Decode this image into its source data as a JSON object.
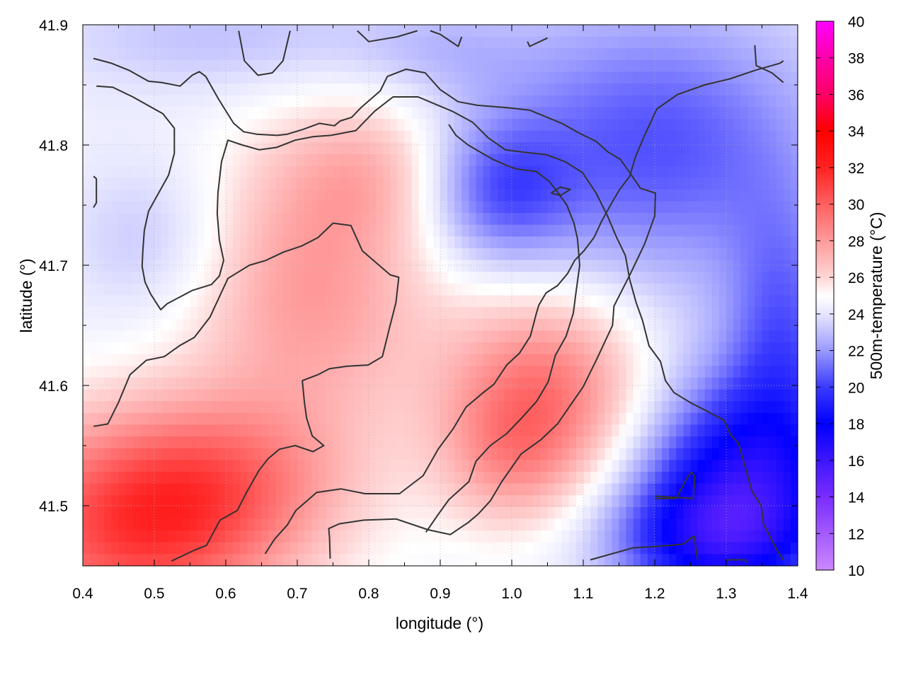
{
  "chart_data": {
    "type": "heatmap",
    "xlabel": "longitude (°)",
    "ylabel": "latitude (°)",
    "colorbar_label": "500m-temperature (°C)",
    "xlim": [
      0.4,
      1.4
    ],
    "ylim": [
      41.45,
      41.9
    ],
    "x_ticks": [
      "0.4",
      "0.5",
      "0.6",
      "0.7",
      "0.8",
      "0.9",
      "1.0",
      "1.1",
      "1.2",
      "1.3",
      "1.4"
    ],
    "y_ticks": [
      "41.5",
      "41.6",
      "41.7",
      "41.8",
      "41.9"
    ],
    "colorbar_range": [
      10,
      40
    ],
    "colorbar_ticks": [
      "10",
      "12",
      "14",
      "16",
      "18",
      "20",
      "22",
      "24",
      "26",
      "28",
      "30",
      "32",
      "34",
      "36",
      "38",
      "40"
    ],
    "colormap": [
      {
        "value": 10,
        "color": "#cc88ff"
      },
      {
        "value": 14,
        "color": "#7a2cff"
      },
      {
        "value": 18,
        "color": "#0000ff"
      },
      {
        "value": 20,
        "color": "#3a3aff"
      },
      {
        "value": 22,
        "color": "#9a9aff"
      },
      {
        "value": 24,
        "color": "#e6e6ff"
      },
      {
        "value": 25,
        "color": "#ffffff"
      },
      {
        "value": 26,
        "color": "#ffd6d6"
      },
      {
        "value": 28,
        "color": "#ff9a9a"
      },
      {
        "value": 30,
        "color": "#ff6060"
      },
      {
        "value": 32,
        "color": "#ff2222"
      },
      {
        "value": 34,
        "color": "#ff0000"
      },
      {
        "value": 36,
        "color": "#ff0066"
      },
      {
        "value": 38,
        "color": "#ff00aa"
      },
      {
        "value": 40,
        "color": "#ff00ff"
      }
    ],
    "grid": true,
    "contour_color": "#333333",
    "field_blobs": [
      {
        "lon": 0.47,
        "lat": 41.48,
        "r_lon": 0.2,
        "r_lat": 0.09,
        "delta": 6.0
      },
      {
        "lon": 0.6,
        "lat": 41.52,
        "r_lon": 0.18,
        "r_lat": 0.07,
        "delta": 3.0
      },
      {
        "lon": 0.72,
        "lat": 41.68,
        "r_lon": 0.17,
        "r_lat": 0.12,
        "delta": 3.5
      },
      {
        "lon": 0.8,
        "lat": 41.78,
        "r_lon": 0.12,
        "r_lat": 0.06,
        "delta": 2.0
      },
      {
        "lon": 1.05,
        "lat": 41.6,
        "r_lon": 0.14,
        "r_lat": 0.08,
        "delta": 4.5
      },
      {
        "lon": 1.0,
        "lat": 41.54,
        "r_lon": 0.1,
        "r_lat": 0.06,
        "delta": 2.5
      },
      {
        "lon": 0.5,
        "lat": 41.72,
        "r_lon": 0.12,
        "r_lat": 0.07,
        "delta": -1.5
      },
      {
        "lon": 1.2,
        "lat": 41.8,
        "r_lon": 0.25,
        "r_lat": 0.12,
        "delta": -4.0
      },
      {
        "lon": 0.98,
        "lat": 41.76,
        "r_lon": 0.1,
        "r_lat": 0.06,
        "delta": -3.0
      },
      {
        "lon": 1.33,
        "lat": 41.52,
        "r_lon": 0.15,
        "r_lat": 0.09,
        "delta": -7.0
      },
      {
        "lon": 1.27,
        "lat": 41.47,
        "r_lon": 0.14,
        "r_lat": 0.05,
        "delta": -4.0
      },
      {
        "lon": 1.38,
        "lat": 41.65,
        "r_lon": 0.08,
        "r_lat": 0.1,
        "delta": -3.0
      },
      {
        "lon": 0.6,
        "lat": 41.89,
        "r_lon": 0.25,
        "r_lat": 0.05,
        "delta": -1.5
      },
      {
        "lon": 0.9,
        "lat": 41.88,
        "r_lon": 0.12,
        "r_lat": 0.04,
        "delta": -1.0
      }
    ],
    "field_base": 24.5,
    "contours": [
      [
        [
          0.415,
          41.872
        ],
        [
          0.44,
          41.868
        ],
        [
          0.465,
          41.862
        ],
        [
          0.492,
          41.853
        ],
        [
          0.51,
          41.852
        ],
        [
          0.536,
          41.849
        ],
        [
          0.553,
          41.858
        ],
        [
          0.563,
          41.861
        ],
        [
          0.572,
          41.857
        ],
        [
          0.59,
          41.838
        ],
        [
          0.611,
          41.818
        ],
        [
          0.625,
          41.811
        ],
        [
          0.643,
          41.809
        ],
        [
          0.672,
          41.808
        ],
        [
          0.686,
          41.809
        ],
        [
          0.708,
          41.813
        ],
        [
          0.731,
          41.818
        ],
        [
          0.752,
          41.816
        ],
        [
          0.76,
          41.82
        ],
        [
          0.776,
          41.823
        ],
        [
          0.789,
          41.831
        ],
        [
          0.816,
          41.845
        ],
        [
          0.826,
          41.857
        ],
        [
          0.852,
          41.863
        ],
        [
          0.879,
          41.86
        ],
        [
          0.9,
          41.846
        ],
        [
          0.925,
          41.836
        ],
        [
          0.952,
          41.833
        ],
        [
          0.994,
          41.831
        ],
        [
          1.025,
          41.829
        ],
        [
          1.07,
          41.818
        ],
        [
          1.094,
          41.81
        ],
        [
          1.118,
          41.803
        ],
        [
          1.135,
          41.794
        ],
        [
          1.152,
          41.788
        ],
        [
          1.165,
          41.777
        ],
        [
          1.18,
          41.764
        ],
        [
          1.201,
          41.76
        ],
        [
          1.2,
          41.741
        ],
        [
          1.186,
          41.718
        ],
        [
          1.166,
          41.693
        ],
        [
          1.143,
          41.666
        ],
        [
          1.141,
          41.65
        ],
        [
          1.119,
          41.622
        ],
        [
          1.1,
          41.599
        ],
        [
          1.064,
          41.568
        ],
        [
          1.041,
          41.555
        ],
        [
          1.013,
          41.543
        ],
        [
          0.986,
          41.52
        ],
        [
          0.97,
          41.504
        ],
        [
          0.953,
          41.493
        ],
        [
          0.939,
          41.486
        ],
        [
          0.929,
          41.482
        ],
        [
          0.914,
          41.476
        ],
        [
          0.883,
          41.48
        ],
        [
          0.838,
          41.489
        ],
        [
          0.793,
          41.488
        ],
        [
          0.759,
          41.485
        ],
        [
          0.744,
          41.481
        ],
        [
          0.745,
          41.474
        ],
        [
          0.746,
          41.456
        ]
      ],
      [
        [
          0.419,
          41.849
        ],
        [
          0.442,
          41.848
        ],
        [
          0.47,
          41.84
        ],
        [
          0.488,
          41.834
        ],
        [
          0.512,
          41.826
        ],
        [
          0.528,
          41.814
        ],
        [
          0.528,
          41.793
        ],
        [
          0.52,
          41.775
        ],
        [
          0.505,
          41.759
        ],
        [
          0.492,
          41.745
        ],
        [
          0.486,
          41.729
        ],
        [
          0.484,
          41.712
        ],
        [
          0.483,
          41.699
        ],
        [
          0.487,
          41.686
        ],
        [
          0.495,
          41.676
        ],
        [
          0.509,
          41.663
        ],
        [
          0.518,
          41.668
        ],
        [
          0.537,
          41.674
        ],
        [
          0.553,
          41.679
        ],
        [
          0.58,
          41.684
        ],
        [
          0.591,
          41.691
        ],
        [
          0.597,
          41.704
        ],
        [
          0.591,
          41.721
        ],
        [
          0.588,
          41.743
        ],
        [
          0.589,
          41.76
        ],
        [
          0.594,
          41.786
        ],
        [
          0.603,
          41.804
        ],
        [
          0.623,
          41.8
        ],
        [
          0.647,
          41.796
        ],
        [
          0.671,
          41.798
        ],
        [
          0.697,
          41.804
        ],
        [
          0.723,
          41.807
        ],
        [
          0.747,
          41.808
        ],
        [
          0.782,
          41.812
        ],
        [
          0.808,
          41.828
        ],
        [
          0.834,
          41.84
        ],
        [
          0.869,
          41.84
        ],
        [
          0.897,
          41.833
        ],
        [
          0.917,
          41.828
        ],
        [
          0.945,
          41.819
        ],
        [
          0.967,
          41.806
        ],
        [
          0.991,
          41.796
        ],
        [
          1.017,
          41.794
        ],
        [
          1.048,
          41.792
        ],
        [
          1.075,
          41.786
        ],
        [
          1.099,
          41.777
        ],
        [
          1.118,
          41.76
        ],
        [
          1.134,
          41.741
        ],
        [
          1.146,
          41.724
        ],
        [
          1.159,
          41.708
        ],
        [
          1.165,
          41.688
        ],
        [
          1.174,
          41.669
        ],
        [
          1.183,
          41.654
        ],
        [
          1.192,
          41.633
        ],
        [
          1.208,
          41.62
        ],
        [
          1.215,
          41.604
        ],
        [
          1.227,
          41.594
        ],
        [
          1.252,
          41.585
        ],
        [
          1.272,
          41.579
        ],
        [
          1.297,
          41.571
        ],
        [
          1.306,
          41.559
        ],
        [
          1.317,
          41.552
        ],
        [
          1.322,
          41.542
        ],
        [
          1.336,
          41.512
        ],
        [
          1.349,
          41.5
        ],
        [
          1.352,
          41.485
        ],
        [
          1.372,
          41.462
        ],
        [
          1.38,
          41.455
        ]
      ],
      [
        [
          0.415,
          41.566
        ],
        [
          0.435,
          41.568
        ],
        [
          0.45,
          41.586
        ],
        [
          0.466,
          41.609
        ],
        [
          0.489,
          41.621
        ],
        [
          0.514,
          41.624
        ],
        [
          0.535,
          41.633
        ],
        [
          0.556,
          41.64
        ],
        [
          0.578,
          41.657
        ],
        [
          0.603,
          41.689
        ],
        [
          0.633,
          41.7
        ],
        [
          0.656,
          41.704
        ],
        [
          0.681,
          41.711
        ],
        [
          0.706,
          41.716
        ],
        [
          0.729,
          41.723
        ],
        [
          0.75,
          41.735
        ],
        [
          0.775,
          41.733
        ],
        [
          0.791,
          41.712
        ],
        [
          0.83,
          41.692
        ],
        [
          0.842,
          41.69
        ],
        [
          0.838,
          41.669
        ],
        [
          0.829,
          41.648
        ],
        [
          0.819,
          41.624
        ],
        [
          0.799,
          41.617
        ],
        [
          0.77,
          41.616
        ],
        [
          0.745,
          41.614
        ],
        [
          0.729,
          41.609
        ],
        [
          0.707,
          41.604
        ],
        [
          0.71,
          41.586
        ],
        [
          0.713,
          41.573
        ],
        [
          0.721,
          41.558
        ],
        [
          0.737,
          41.55
        ],
        [
          0.722,
          41.545
        ],
        [
          0.697,
          41.55
        ],
        [
          0.675,
          41.547
        ],
        [
          0.659,
          41.539
        ],
        [
          0.646,
          41.529
        ],
        [
          0.629,
          41.511
        ],
        [
          0.616,
          41.496
        ],
        [
          0.592,
          41.488
        ],
        [
          0.573,
          41.467
        ],
        [
          0.556,
          41.463
        ],
        [
          0.524,
          41.454
        ]
      ],
      [
        [
          0.655,
          41.46
        ],
        [
          0.668,
          41.472
        ],
        [
          0.686,
          41.484
        ],
        [
          0.698,
          41.496
        ],
        [
          0.727,
          41.511
        ],
        [
          0.761,
          41.514
        ],
        [
          0.795,
          41.51
        ],
        [
          0.843,
          41.51
        ],
        [
          0.876,
          41.525
        ],
        [
          0.897,
          41.547
        ],
        [
          0.918,
          41.564
        ],
        [
          0.936,
          41.582
        ],
        [
          0.96,
          41.594
        ],
        [
          0.975,
          41.601
        ],
        [
          0.993,
          41.617
        ],
        [
          1.011,
          41.627
        ],
        [
          1.026,
          41.641
        ],
        [
          1.034,
          41.659
        ],
        [
          1.038,
          41.667
        ],
        [
          1.048,
          41.677
        ],
        [
          1.064,
          41.683
        ],
        [
          1.078,
          41.693
        ],
        [
          1.088,
          41.704
        ],
        [
          1.101,
          41.712
        ],
        [
          1.115,
          41.723
        ],
        [
          1.126,
          41.737
        ],
        [
          1.14,
          41.752
        ],
        [
          1.151,
          41.763
        ],
        [
          1.165,
          41.774
        ],
        [
          1.173,
          41.79
        ],
        [
          1.185,
          41.807
        ],
        [
          1.203,
          41.83
        ],
        [
          1.232,
          41.842
        ],
        [
          1.27,
          41.85
        ],
        [
          1.305,
          41.855
        ],
        [
          1.34,
          41.862
        ],
        [
          1.375,
          41.868
        ],
        [
          1.38,
          41.87
        ]
      ],
      [
        [
          0.88,
          41.478
        ],
        [
          0.895,
          41.491
        ],
        [
          0.912,
          41.505
        ],
        [
          0.94,
          41.52
        ],
        [
          0.95,
          41.537
        ],
        [
          0.97,
          41.55
        ],
        [
          0.993,
          41.56
        ],
        [
          1.014,
          41.573
        ],
        [
          1.035,
          41.587
        ],
        [
          1.051,
          41.603
        ],
        [
          1.061,
          41.625
        ],
        [
          1.076,
          41.641
        ],
        [
          1.086,
          41.66
        ],
        [
          1.09,
          41.678
        ],
        [
          1.095,
          41.7
        ],
        [
          1.092,
          41.722
        ],
        [
          1.087,
          41.735
        ],
        [
          1.077,
          41.75
        ],
        [
          1.064,
          41.761
        ],
        [
          1.052,
          41.77
        ],
        [
          1.034,
          41.778
        ],
        [
          1.007,
          41.78
        ],
        [
          0.993,
          41.783
        ],
        [
          0.974,
          41.788
        ],
        [
          0.959,
          41.793
        ],
        [
          0.939,
          41.8
        ],
        [
          0.922,
          41.808
        ],
        [
          0.912,
          41.817
        ]
      ],
      [
        [
          1.11,
          41.455
        ],
        [
          1.14,
          41.46
        ],
        [
          1.17,
          41.465
        ],
        [
          1.2,
          41.466
        ],
        [
          1.24,
          41.468
        ],
        [
          1.255,
          41.475
        ],
        [
          1.26,
          41.455
        ]
      ],
      [
        [
          1.2,
          41.506
        ],
        [
          1.23,
          41.506
        ],
        [
          1.246,
          41.524
        ],
        [
          1.252,
          41.528
        ],
        [
          1.256,
          41.524
        ],
        [
          1.254,
          41.506
        ],
        [
          1.2,
          41.508
        ]
      ],
      [
        [
          1.055,
          41.76
        ],
        [
          1.068,
          41.765
        ],
        [
          1.082,
          41.763
        ],
        [
          1.068,
          41.758
        ],
        [
          1.055,
          41.76
        ]
      ],
      [
        [
          0.415,
          41.774
        ],
        [
          0.419,
          41.772
        ],
        [
          0.419,
          41.752
        ],
        [
          0.415,
          41.748
        ]
      ],
      [
        [
          0.618,
          41.895
        ],
        [
          0.626,
          41.87
        ],
        [
          0.645,
          41.858
        ],
        [
          0.665,
          41.86
        ],
        [
          0.68,
          41.87
        ],
        [
          0.69,
          41.895
        ]
      ],
      [
        [
          0.784,
          41.895
        ],
        [
          0.8,
          41.886
        ],
        [
          0.84,
          41.89
        ],
        [
          0.868,
          41.895
        ]
      ],
      [
        [
          0.886,
          41.895
        ],
        [
          0.9,
          41.892
        ],
        [
          0.925,
          41.882
        ],
        [
          0.93,
          41.89
        ]
      ],
      [
        [
          1.022,
          41.886
        ],
        [
          1.025,
          41.882
        ],
        [
          1.05,
          41.889
        ]
      ],
      [
        [
          1.34,
          41.883
        ],
        [
          1.342,
          41.866
        ],
        [
          1.364,
          41.86
        ],
        [
          1.38,
          41.852
        ]
      ],
      [
        [
          1.3,
          41.455
        ],
        [
          1.325,
          41.455
        ],
        [
          1.33,
          41.453
        ]
      ]
    ]
  }
}
